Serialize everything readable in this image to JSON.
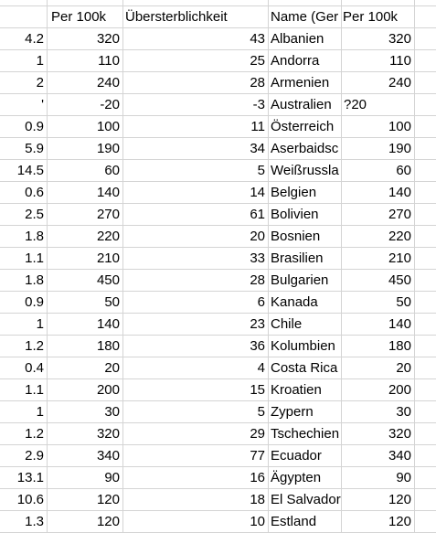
{
  "headers": {
    "a": "",
    "b": "Per 100k",
    "c": "Übersterblichkeit",
    "d": "Name (Ger",
    "e": "Per 100k"
  },
  "rows": [
    {
      "a": "4.2",
      "b": "320",
      "c": "43",
      "d": "Albanien",
      "e": "320"
    },
    {
      "a": "1",
      "b": "110",
      "c": "25",
      "d": "Andorra",
      "e": "110"
    },
    {
      "a": "2",
      "b": "240",
      "c": "28",
      "d": "Armenien",
      "e": "240"
    },
    {
      "a": "'",
      "b": "-20",
      "c": "-3",
      "d": "Australien",
      "e": "?20"
    },
    {
      "a": "0.9",
      "b": "100",
      "c": "11",
      "d": "Österreich",
      "e": "100"
    },
    {
      "a": "5.9",
      "b": "190",
      "c": "34",
      "d": "Aserbaidsc",
      "e": "190"
    },
    {
      "a": "14.5",
      "b": "60",
      "c": "5",
      "d": "Weißrussla",
      "e": "60"
    },
    {
      "a": "0.6",
      "b": "140",
      "c": "14",
      "d": "Belgien",
      "e": "140"
    },
    {
      "a": "2.5",
      "b": "270",
      "c": "61",
      "d": "Bolivien",
      "e": "270"
    },
    {
      "a": "1.8",
      "b": "220",
      "c": "20",
      "d": "Bosnien",
      "e": "220"
    },
    {
      "a": "1.1",
      "b": "210",
      "c": "33",
      "d": "Brasilien",
      "e": "210"
    },
    {
      "a": "1.8",
      "b": "450",
      "c": "28",
      "d": "Bulgarien",
      "e": "450"
    },
    {
      "a": "0.9",
      "b": "50",
      "c": "6",
      "d": "Kanada",
      "e": "50"
    },
    {
      "a": "1",
      "b": "140",
      "c": "23",
      "d": "Chile",
      "e": "140"
    },
    {
      "a": "1.2",
      "b": "180",
      "c": "36",
      "d": "Kolumbien",
      "e": "180"
    },
    {
      "a": "0.4",
      "b": "20",
      "c": "4",
      "d": "Costa Rica",
      "e": "20"
    },
    {
      "a": "1.1",
      "b": "200",
      "c": "15",
      "d": "Kroatien",
      "e": "200"
    },
    {
      "a": "1",
      "b": "30",
      "c": "5",
      "d": "Zypern",
      "e": "30"
    },
    {
      "a": "1.2",
      "b": "320",
      "c": "29",
      "d": "Tschechien",
      "e": "320"
    },
    {
      "a": "2.9",
      "b": "340",
      "c": "77",
      "d": "Ecuador",
      "e": "340"
    },
    {
      "a": "13.1",
      "b": "90",
      "c": "16",
      "d": "Ägypten",
      "e": "90"
    },
    {
      "a": "10.6",
      "b": "120",
      "c": "18",
      "d": "El Salvador",
      "e": "120"
    },
    {
      "a": "1.3",
      "b": "120",
      "c": "10",
      "d": "Estland",
      "e": "120"
    }
  ]
}
